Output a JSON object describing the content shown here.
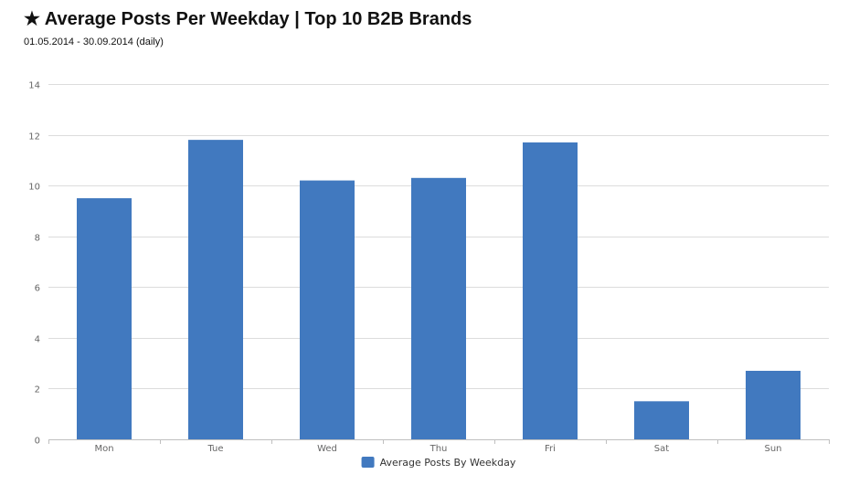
{
  "title": "★ Average Posts Per Weekday | Top 10 B2B Brands",
  "subtitle": "01.05.2014 - 30.09.2014 (daily)",
  "chart_data": {
    "type": "bar",
    "categories": [
      "Mon",
      "Tue",
      "Wed",
      "Thu",
      "Fri",
      "Sat",
      "Sun"
    ],
    "series": [
      {
        "name": "Average Posts By Weekday",
        "values": [
          9.5,
          11.8,
          10.2,
          10.3,
          11.7,
          1.5,
          2.7
        ],
        "color": "#4179bf"
      }
    ],
    "ylim": [
      0,
      14
    ],
    "yticks": [
      0,
      2,
      4,
      6,
      8,
      10,
      12,
      14
    ],
    "xlabel": "",
    "ylabel": "",
    "grid": true,
    "legend": "bottom-center"
  }
}
